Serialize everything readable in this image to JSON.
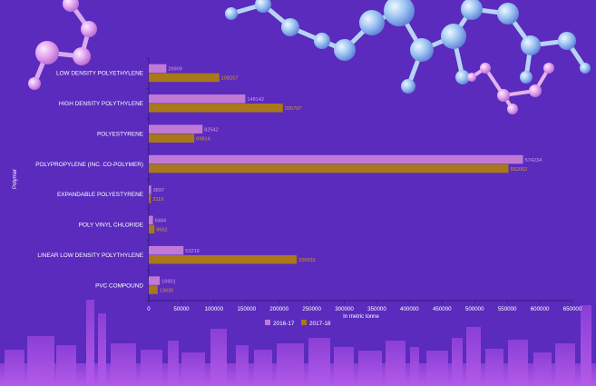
{
  "chart_data": {
    "type": "bar",
    "orientation": "horizontal",
    "categories": [
      "LOW DENSITY POLYETHYLENE",
      "HIGH DENSITY POLYTHYLENE",
      "POLYESTYRENE",
      "POLYPROPYLENE (INC. CO-POLYMER)",
      "EXPANDABLE POLYESTYRENE",
      "POLY VINYL CHLORIDE",
      "LINEAR LOW DENSITY POLYTHYLENE",
      "PVC COMPOUND"
    ],
    "series": [
      {
        "name": "2016-17",
        "color": "#c07ad6",
        "values": [
          26909,
          148142,
          82542,
          574234,
          3697,
          6484,
          53219,
          16901
        ]
      },
      {
        "name": "2017-18",
        "color": "#a8781a",
        "values": [
          108257,
          205707,
          69814,
          552002,
          3119,
          8662,
          226932,
          13630
        ]
      }
    ],
    "xlabel": "In metric tonne",
    "ylabel": "Polymer",
    "xlim": [
      0,
      650000
    ],
    "xticks": [
      "0",
      "50000",
      "100000",
      "150000",
      "200000",
      "250000",
      "300000",
      "350000",
      "400000",
      "450000",
      "500000",
      "550000",
      "600000",
      "650000"
    ],
    "legend_position": "bottom",
    "grid": false
  }
}
